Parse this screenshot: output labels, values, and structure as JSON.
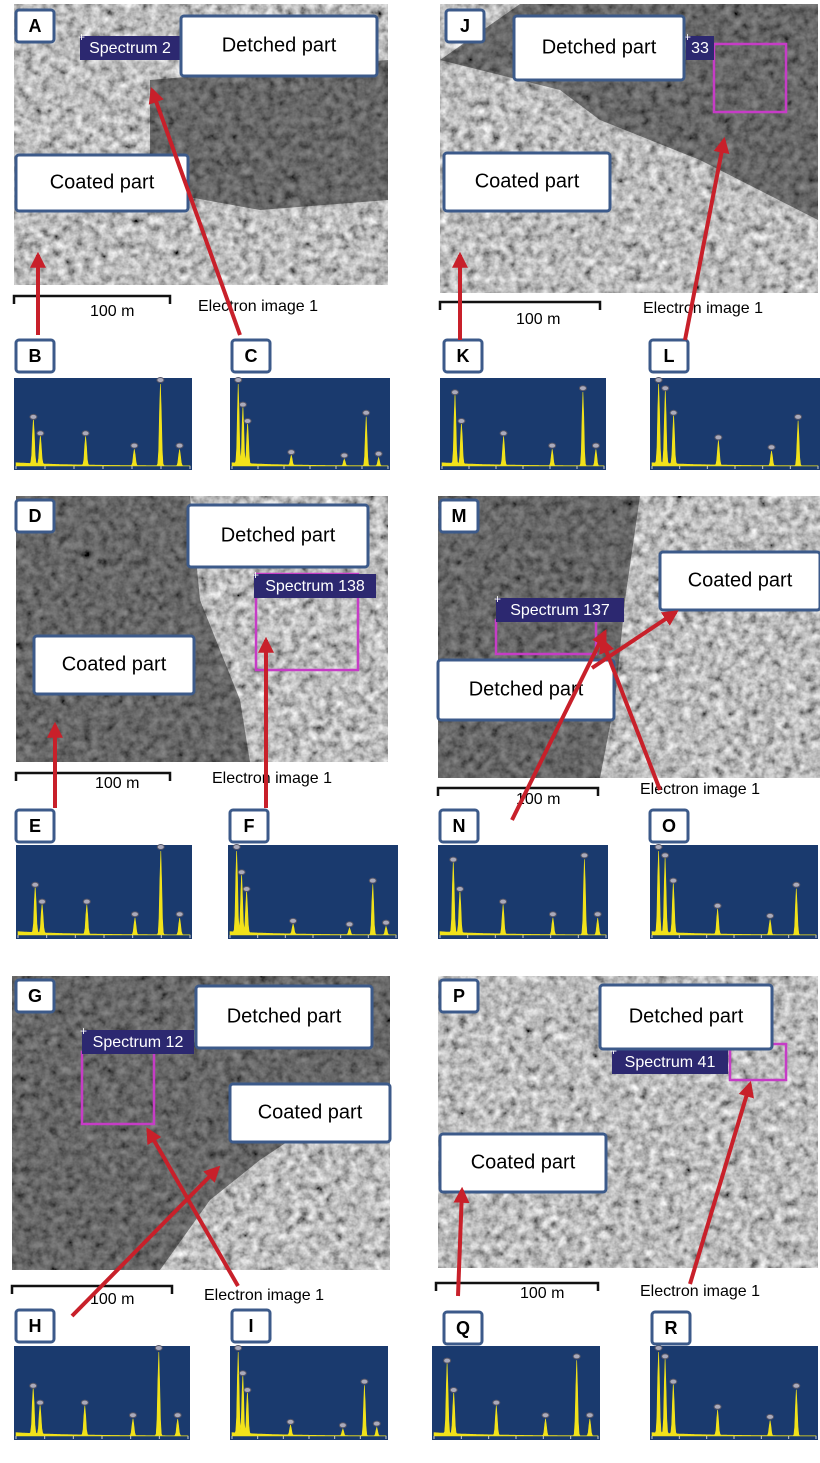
{
  "panels": [
    {
      "label": "A",
      "detached": "Detched part",
      "coated": "Coated part",
      "spectrum": "Spectrum 2",
      "scale": "100 m",
      "caption": "Electron image 1",
      "spectra": [
        "B",
        "C"
      ]
    },
    {
      "label": "J",
      "detached": "Detched part",
      "coated": "Coated part",
      "spectrum": "33",
      "scale": "100 m",
      "caption": "Electron image 1",
      "spectra": [
        "K",
        "L"
      ]
    },
    {
      "label": "D",
      "detached": "Detched part",
      "coated": "Coated part",
      "spectrum": "Spectrum 138",
      "scale": "100 m",
      "caption": "Electron image 1",
      "spectra": [
        "E",
        "F"
      ]
    },
    {
      "label": "M",
      "detached": "Detched part",
      "coated": "Coated part",
      "spectrum": "Spectrum 137",
      "scale": "100 m",
      "caption": "Electron image 1",
      "spectra": [
        "N",
        "O"
      ]
    },
    {
      "label": "G",
      "detached": "Detched part",
      "coated": "Coated part",
      "spectrum": "Spectrum 12",
      "scale": "100 m",
      "caption": "Electron image 1",
      "spectra": [
        "H",
        "I"
      ]
    },
    {
      "label": "P",
      "detached": "Detched part",
      "coated": "Coated part",
      "spectrum": "Spectrum 41",
      "scale": "100 m",
      "caption": "Electron image 1",
      "spectra": [
        "Q",
        "R"
      ]
    }
  ]
}
